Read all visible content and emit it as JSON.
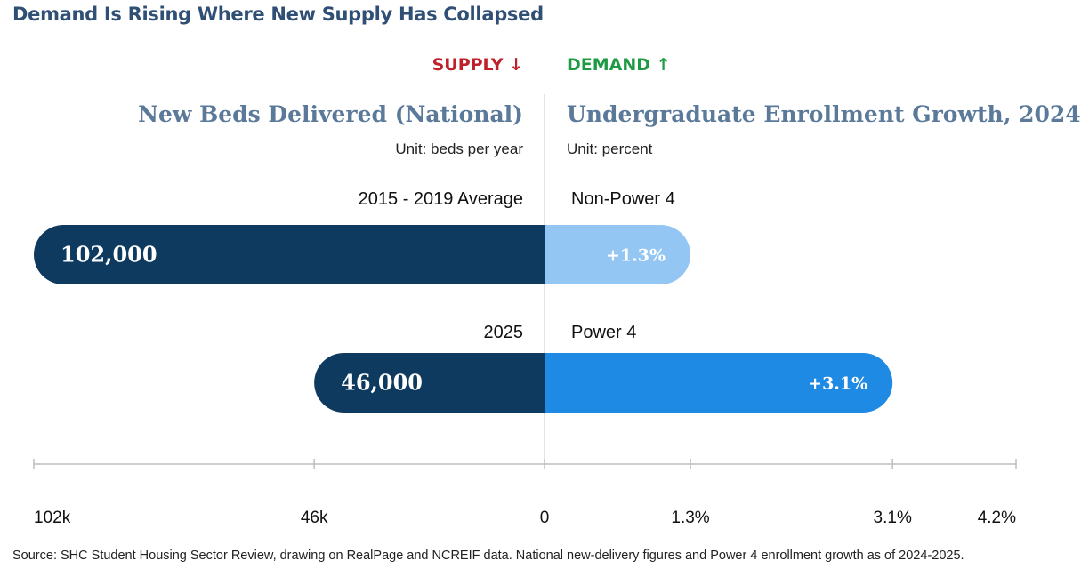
{
  "title": "Demand Is Rising Where New Supply Has Collapsed",
  "supply_tag": "SUPPLY ↓",
  "demand_tag": "DEMAND ↑",
  "colors": {
    "supply_tag": "#c0202a",
    "demand_tag": "#1e9a45",
    "supply_bar": "#0f3a5f",
    "demand_light": "#93c6f2",
    "demand_dark": "#1f8ae3",
    "axis": "#bdbdbd"
  },
  "chart_data": {
    "type": "bar",
    "orientation": "diverging-horizontal",
    "left_panel": {
      "title": "New Beds Delivered (National)",
      "unit": "Unit: beds per year",
      "categories": [
        "2015 -  2019 Average",
        "2025"
      ],
      "values": [
        102000,
        46000
      ],
      "value_labels": [
        "102,000",
        "46,000"
      ],
      "xlim": [
        0,
        102000
      ]
    },
    "right_panel": {
      "title": "Undergraduate Enrollment Growth, 2024",
      "unit": "Unit: percent",
      "categories": [
        "Non-Power 4",
        "Power 4"
      ],
      "values": [
        1.3,
        3.1
      ],
      "value_labels": [
        "+1.3%",
        "+3.1%"
      ],
      "xlim": [
        0,
        4.2
      ]
    },
    "axis_ticks": {
      "left": [
        {
          "value": 102000,
          "label": "102k"
        },
        {
          "value": 46000,
          "label": "46k"
        }
      ],
      "center": {
        "label": "0"
      },
      "right": [
        {
          "value": 1.3,
          "label": "1.3%"
        },
        {
          "value": 3.1,
          "label": "3.1%"
        },
        {
          "value": 4.2,
          "label": "4.2%"
        }
      ]
    },
    "grid": false
  },
  "source": "Source: SHC Student Housing Sector Review, drawing on RealPage and NCREIF data. National new-delivery figures and Power 4 enrollment growth as of 2024-2025."
}
